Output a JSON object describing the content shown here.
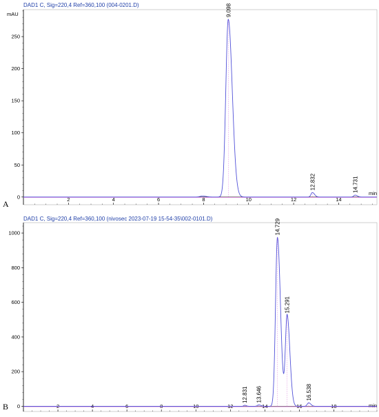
{
  "colors": {
    "trace": "#5050d8",
    "baseline": "#d35fd3",
    "title": "#1f3fa8",
    "axis": "#000000",
    "frame": "#b0b0b0"
  },
  "chart_data": [
    {
      "type": "line",
      "panel_label": "A",
      "title": "DAD1 C, Sig=220,4 Ref=360,100 (004-0201.D)",
      "ylabel": "mAU",
      "xlabel": "min",
      "xlim": [
        0,
        15.7
      ],
      "ylim": [
        -12,
        292
      ],
      "xticks": [
        2,
        4,
        6,
        8,
        10,
        12,
        14
      ],
      "yticks": [
        0,
        50,
        100,
        150,
        200,
        250
      ],
      "peaks": [
        {
          "label": "9.098",
          "rt": 9.098,
          "height": 277,
          "width": 0.11
        },
        {
          "label": "12.832",
          "rt": 12.832,
          "height": 7,
          "width": 0.06
        },
        {
          "label": "14.731",
          "rt": 14.731,
          "height": 3,
          "width": 0.06
        }
      ],
      "minor_bumps": [
        {
          "rt": 7.95,
          "height": 1.5,
          "width": 0.1
        }
      ]
    },
    {
      "type": "line",
      "panel_label": "B",
      "title": "DAD1 C, Sig=220,4 Ref=360,100 (nivosec 2023-07-19 15-54-35\\002-0101.D)",
      "ylabel": "",
      "xlabel": "min",
      "xlim": [
        0,
        20.5
      ],
      "ylim": [
        -30,
        1060
      ],
      "xticks": [
        2,
        4,
        6,
        8,
        10,
        12,
        14,
        16,
        18
      ],
      "yticks": [
        0,
        200,
        400,
        600,
        800,
        1000
      ],
      "peaks": [
        {
          "label": "12.831",
          "rt": 12.831,
          "height": 6,
          "width": 0.06
        },
        {
          "label": "13.646",
          "rt": 13.646,
          "height": 8,
          "width": 0.08
        },
        {
          "label": "14.729",
          "rt": 14.729,
          "height": 975,
          "width": 0.11
        },
        {
          "label": "15.291",
          "rt": 15.291,
          "height": 525,
          "width": 0.1
        },
        {
          "label": "16.538",
          "rt": 16.538,
          "height": 20,
          "width": 0.08
        }
      ],
      "minor_bumps": []
    }
  ]
}
